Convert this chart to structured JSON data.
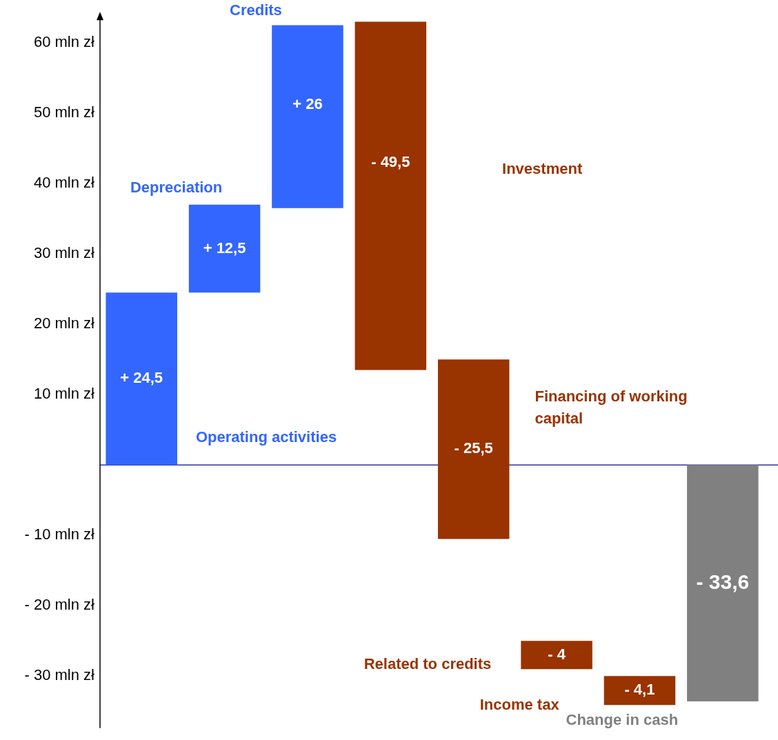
{
  "chart_data": {
    "type": "bar",
    "categories": [
      null,
      null,
      null,
      null,
      null,
      null,
      null,
      null
    ],
    "annotations": [
      "Operating activities",
      "Depreciation",
      "Credits",
      "Investment",
      "Financing of working capital",
      "Related to credits",
      "Income tax",
      "Change in cash"
    ],
    "base": [
      0,
      24.5,
      36.5,
      63,
      15,
      -25,
      -30,
      0
    ],
    "values": [
      24.5,
      12.5,
      26,
      -49.5,
      -25.5,
      -4,
      -4.1,
      -33.6
    ],
    "colors": [
      "#3366ff",
      "#3366ff",
      "#3366ff",
      "#993300",
      "#993300",
      "#993300",
      "#993300",
      "#808080"
    ],
    "value_labels": [
      "+ 24,5",
      "+ 12,5",
      "+ 26",
      "- 49,5",
      "- 25,5",
      "- 4",
      "- 4,1",
      "- 33,6"
    ],
    "ylim": [
      -37,
      64
    ],
    "yticks": [
      {
        "value": -30,
        "label": "- 30 mln zł"
      },
      {
        "value": -20,
        "label": "- 20 mln zł"
      },
      {
        "value": -10,
        "label": "- 10 mln zł"
      },
      {
        "value": 0,
        "label": null
      },
      {
        "value": 10,
        "label": "10 mln zł"
      },
      {
        "value": 20,
        "label": "20 mln zł"
      },
      {
        "value": 30,
        "label": "30 mln zł"
      },
      {
        "value": 40,
        "label": "40 mln zł"
      },
      {
        "value": 50,
        "label": "50 mln zł"
      },
      {
        "value": 60,
        "label": "60 mln zł"
      }
    ],
    "ref_lines": [
      {
        "axis": "y",
        "value": 0,
        "label": null,
        "color": "#333399"
      }
    ],
    "grid": false,
    "legend": false
  }
}
